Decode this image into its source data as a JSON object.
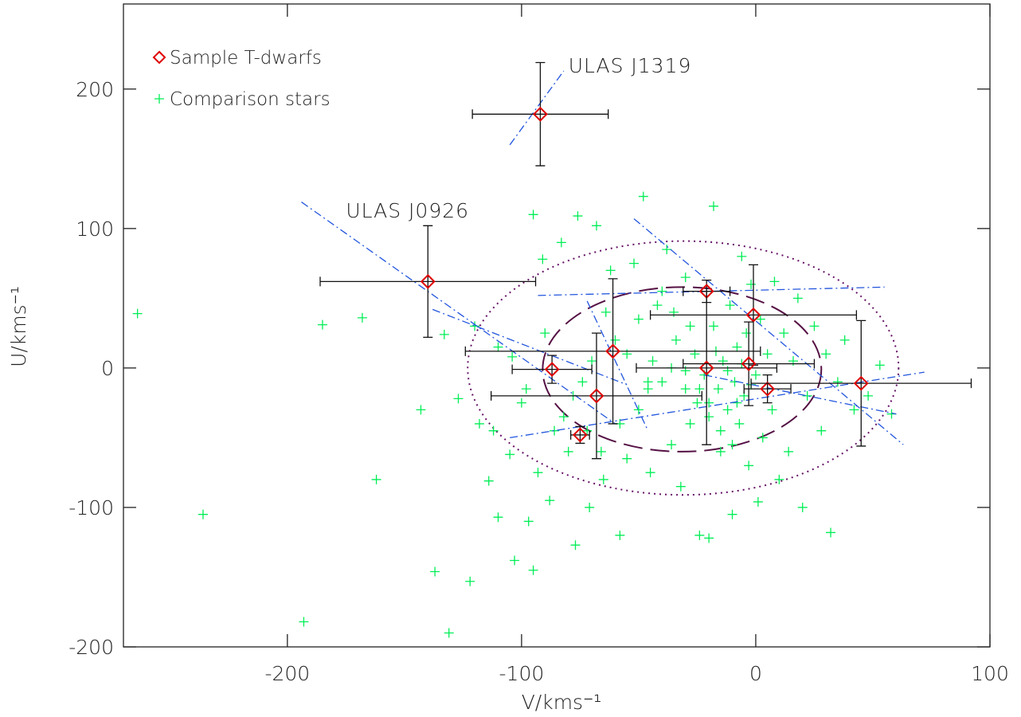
{
  "chart_data": {
    "type": "scatter",
    "xlabel": "V/kms⁻¹",
    "ylabel": "U/kms⁻¹",
    "xlim": [
      -270,
      100
    ],
    "ylim": [
      -200,
      261
    ],
    "xticks": [
      -200,
      -100,
      0,
      100
    ],
    "yticks": [
      -200,
      -100,
      0,
      100,
      200
    ],
    "legend": "upper left",
    "series": [
      {
        "name": "Sample T-dwarfs",
        "color": "#e00000",
        "marker": "diamond",
        "x": [
          -92,
          -140,
          -87,
          -61,
          -68,
          -75,
          -21,
          -21,
          -1,
          -3,
          5,
          45
        ],
        "values": [
          182,
          62,
          -1,
          12,
          -20,
          -48,
          55,
          0,
          38,
          3,
          -15,
          -11
        ],
        "xerr": [
          29,
          46,
          17,
          63,
          45,
          4,
          10,
          30,
          44,
          28,
          10,
          47
        ],
        "yerr": [
          37,
          40,
          10,
          52,
          45,
          6,
          8,
          55,
          36,
          30,
          10,
          45
        ]
      },
      {
        "name": "Comparison stars",
        "color": "#00ee55",
        "marker": "plus",
        "x": [
          -264,
          -236,
          -193,
          -185,
          -168,
          -162,
          -143,
          -137,
          -131,
          -122,
          -127,
          -114,
          -110,
          -105,
          -103,
          -100,
          -97,
          -95,
          -95,
          -93,
          -91,
          -88,
          -86,
          -83,
          -80,
          -77,
          -76,
          -74,
          -71,
          -68,
          -65,
          -62,
          -58,
          -55,
          -52,
          -50,
          -48,
          -45,
          -42,
          -40,
          -38,
          -36,
          -34,
          -32,
          -30,
          -28,
          -26,
          -24,
          -22,
          -20,
          -18,
          -18,
          -16,
          -15,
          -14,
          -12,
          -11,
          -10,
          -9,
          -8,
          -7,
          -6,
          -5,
          -4,
          -3,
          -2,
          0,
          1,
          2,
          3,
          5,
          7,
          8,
          10,
          12,
          14,
          16,
          18,
          20,
          22,
          25,
          28,
          30,
          32,
          35,
          38,
          42,
          48,
          53,
          58,
          -60,
          -64,
          -70,
          -78,
          -82,
          -90,
          -98,
          -104,
          -110,
          -112,
          -118,
          -120,
          -133,
          -44,
          -46,
          -36,
          -30,
          -25,
          -20,
          -15,
          -10,
          -28,
          -35,
          -40,
          -50,
          -55,
          -58,
          -66,
          -72,
          -20,
          -46,
          -12,
          -24,
          -17,
          -8,
          -30,
          -6,
          -2
        ],
        "values": [
          39,
          -105,
          -182,
          31,
          36,
          -80,
          -30,
          -146,
          -190,
          -153,
          -22,
          -81,
          -107,
          -62,
          -138,
          -25,
          -110,
          -145,
          110,
          -75,
          78,
          -95,
          -45,
          90,
          -60,
          -127,
          109,
          -10,
          -100,
          102,
          -80,
          70,
          -120,
          -65,
          75,
          -30,
          123,
          -75,
          45,
          -10,
          85,
          -55,
          20,
          -85,
          65,
          -40,
          10,
          -120,
          -5,
          -25,
          30,
          116,
          -15,
          -60,
          5,
          -30,
          45,
          -105,
          -10,
          15,
          -40,
          80,
          -20,
          25,
          -70,
          60,
          -5,
          -96,
          35,
          -50,
          10,
          -30,
          62,
          -80,
          25,
          -60,
          5,
          50,
          -100,
          -20,
          30,
          -45,
          10,
          -118,
          -10,
          20,
          -30,
          -20,
          2,
          -33,
          20,
          40,
          5,
          -20,
          -35,
          25,
          -15,
          8,
          15,
          -45,
          -40,
          30,
          24,
          5,
          -15,
          0,
          -15,
          -25,
          -35,
          -45,
          -55,
          30,
          40,
          55,
          35,
          10,
          -40,
          -60,
          -45,
          -122,
          -10,
          -2,
          -15,
          12,
          -25,
          -2,
          3,
          -12
        ]
      }
    ],
    "lines": [
      {
        "color": "#2255dd",
        "x": [
          -105,
          -82
        ],
        "values": [
          160,
          213
        ]
      },
      {
        "color": "#2255dd",
        "x": [
          -194,
          -60
        ],
        "values": [
          119,
          -40
        ]
      },
      {
        "color": "#2255dd",
        "x": [
          -138,
          -55
        ],
        "values": [
          42,
          -12
        ]
      },
      {
        "color": "#2255dd",
        "x": [
          -93,
          55
        ],
        "values": [
          52,
          58
        ]
      },
      {
        "color": "#2255dd",
        "x": [
          -22,
          60
        ],
        "values": [
          -5,
          -33
        ]
      },
      {
        "color": "#2255dd",
        "x": [
          -105,
          72
        ],
        "values": [
          -50,
          -3
        ]
      },
      {
        "color": "#2255dd",
        "x": [
          -52,
          63
        ],
        "values": [
          107,
          -55
        ]
      },
      {
        "color": "#2255dd",
        "x": [
          -72,
          -46
        ],
        "values": [
          48,
          -45
        ]
      }
    ],
    "ellipses": [
      {
        "color": "#661166",
        "style": "dotted",
        "cx": -31,
        "cy": 0,
        "rx": 92,
        "ry": 91
      },
      {
        "color": "#551144",
        "style": "dashed",
        "cx": -31.5,
        "cy": -1,
        "rx": 59.5,
        "ry": 59
      }
    ],
    "annotations": [
      {
        "text": "ULAS J1319",
        "x": -80,
        "y": 212
      },
      {
        "text": "ULAS J0926",
        "x": -175,
        "y": 108
      }
    ]
  }
}
